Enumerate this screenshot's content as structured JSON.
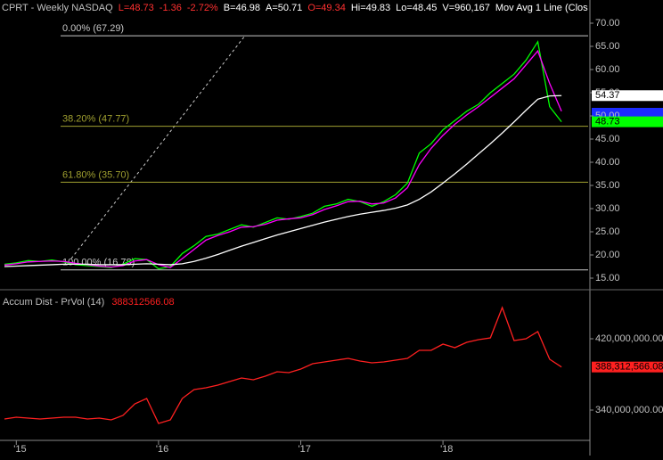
{
  "chart_data": [
    {
      "type": "line",
      "header": [
        {
          "text": "CPRT - Weekly  NASDAQ",
          "color": "#c0c0c0"
        },
        {
          "text": "L=48.73",
          "color": "#ff3030"
        },
        {
          "text": "-1.36",
          "color": "#ff3030"
        },
        {
          "text": "-2.72%",
          "color": "#ff3030"
        },
        {
          "text": "B=46.98",
          "color": "#ffffff"
        },
        {
          "text": "A=50.71",
          "color": "#ffffff"
        },
        {
          "text": "O=49.34",
          "color": "#ff3030"
        },
        {
          "text": "Hi=49.83",
          "color": "#ffffff"
        },
        {
          "text": "Lo=48.45",
          "color": "#ffffff"
        },
        {
          "text": "V=960,167",
          "color": "#ffffff"
        },
        {
          "text": "Mov Avg 1 Line (Clos",
          "color": "#ffffff"
        }
      ],
      "ylim": [
        13.46,
        74.04
      ],
      "yticks": [
        {
          "value": 15,
          "label": "15.00"
        },
        {
          "value": 20,
          "label": "20.00"
        },
        {
          "value": 25,
          "label": "25.00"
        },
        {
          "value": 30,
          "label": "30.00"
        },
        {
          "value": 35,
          "label": "35.00"
        },
        {
          "value": 40,
          "label": "40.00"
        },
        {
          "value": 45,
          "label": "45.00"
        },
        {
          "value": 50,
          "label": "50.00"
        },
        {
          "value": 55,
          "label": "55.00"
        },
        {
          "value": 60,
          "label": "60.00"
        },
        {
          "value": 65,
          "label": "65.00"
        },
        {
          "value": 70,
          "label": "70.00"
        }
      ],
      "series": [
        {
          "color": "#00ff00",
          "values": [
            18,
            18.3,
            18.8,
            18.6,
            18.9,
            18.5,
            17.9,
            17.7,
            17.5,
            17.3,
            18,
            19.2,
            19,
            17,
            17.5,
            20.3,
            22,
            24,
            24.5,
            25.5,
            26.5,
            26,
            27,
            28,
            27.7,
            28.3,
            29,
            30.5,
            31,
            32,
            31.5,
            30.5,
            31.5,
            33,
            35.5,
            42,
            44,
            47,
            49,
            51,
            52.5,
            55,
            57,
            59,
            62,
            66,
            52,
            48.73
          ]
        },
        {
          "color": "#ff00ff",
          "values": [
            17.8,
            18.1,
            18.5,
            18.6,
            18.7,
            18.6,
            18.2,
            17.9,
            17.6,
            17.4,
            17.7,
            18.7,
            19,
            17.9,
            17.3,
            19.2,
            21.2,
            23.2,
            24.2,
            25,
            26,
            26.1,
            26.6,
            27.5,
            27.8,
            28,
            28.7,
            29.8,
            30.6,
            31.5,
            31.6,
            31,
            31.2,
            32.3,
            34.5,
            39.5,
            43,
            45.8,
            48.2,
            50.2,
            52,
            54,
            56,
            58,
            61,
            64,
            57,
            51
          ]
        },
        {
          "color": "#ffffff",
          "values": [
            17.5,
            17.6,
            17.7,
            17.8,
            17.9,
            18,
            18,
            18,
            17.9,
            17.9,
            17.9,
            18,
            18.1,
            18,
            17.9,
            18.1,
            18.6,
            19.3,
            20.1,
            21,
            21.9,
            22.7,
            23.5,
            24.3,
            25,
            25.7,
            26.4,
            27.1,
            27.7,
            28.3,
            28.8,
            29.2,
            29.6,
            30.1,
            30.8,
            32,
            33.6,
            35.5,
            37.5,
            39.6,
            41.8,
            44,
            46.3,
            48.7,
            51.2,
            53.6,
            54.3,
            54.37
          ]
        }
      ],
      "annotations": [
        {
          "label": "0.00% (67.29)",
          "value": 67.29,
          "color": "#c8c8c8"
        },
        {
          "label": "38.20% (47.77)",
          "value": 47.77,
          "color": "#a0a030"
        },
        {
          "label": "61.80% (35.70)",
          "value": 35.7,
          "color": "#a0a030"
        },
        {
          "label": "100.00% (16.78)",
          "value": 16.78,
          "color": "#c8c8c8"
        }
      ],
      "price_labels": [
        {
          "label": "54.37",
          "value": 54.37,
          "color": "#ffffff"
        },
        {
          "label": "48.73",
          "value": 48.73,
          "color": "#00ff00"
        }
      ]
    },
    {
      "type": "line",
      "title": "Accum Dist - PrVol (14)",
      "last_value": 388312566.08,
      "categories": [
        null,
        "'15",
        null,
        null,
        null,
        null,
        null,
        null,
        null,
        null,
        null,
        null,
        null,
        "'16",
        null,
        null,
        null,
        null,
        null,
        null,
        null,
        null,
        null,
        null,
        null,
        "'17",
        null,
        null,
        null,
        null,
        null,
        null,
        null,
        null,
        null,
        null,
        null,
        "'18",
        null,
        null,
        null,
        null,
        null,
        null,
        null,
        null,
        null,
        null
      ],
      "ylim": [
        305000000,
        470000000
      ],
      "yticks": [
        {
          "value": 340000000,
          "label": "340,000,000.00"
        },
        {
          "value": 420000000,
          "label": "420,000,000.00"
        }
      ],
      "series": [
        {
          "color": "#ff2020",
          "values": [
            330000000,
            332000000,
            331000000,
            330000000,
            331000000,
            332000000,
            332000000,
            330000000,
            331000000,
            329000000,
            334000000,
            347000000,
            353000000,
            325000000,
            329000000,
            353000000,
            363000000,
            365000000,
            368000000,
            372000000,
            376000000,
            374000000,
            378000000,
            383000000,
            382000000,
            386000000,
            392000000,
            394000000,
            396000000,
            398000000,
            395000000,
            393000000,
            394000000,
            396000000,
            398000000,
            407000000,
            407000000,
            414000000,
            410000000,
            416000000,
            419000000,
            421000000,
            455000000,
            418000000,
            420000000,
            428000000,
            397000000,
            388312566.08
          ]
        }
      ],
      "price_labels": [
        {
          "label": "388,312,566.08",
          "value": 388312566.08,
          "color": "#ff2020"
        }
      ]
    }
  ]
}
